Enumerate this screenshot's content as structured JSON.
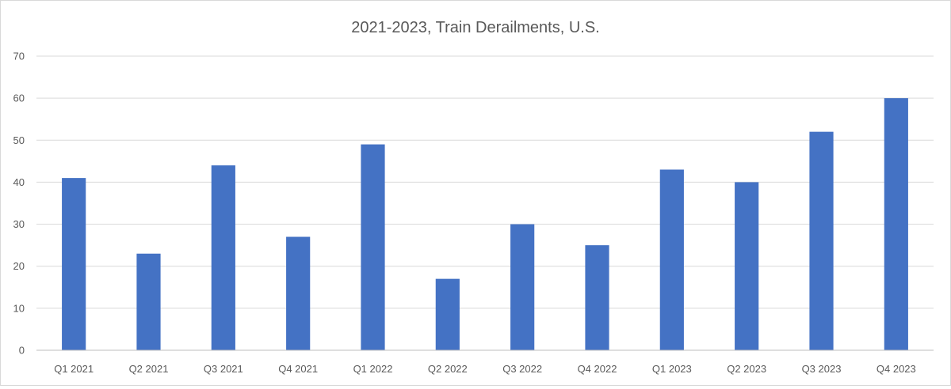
{
  "chart_data": {
    "type": "bar",
    "title": "2021-2023, Train Derailments, U.S.",
    "xlabel": "",
    "ylabel": "",
    "categories": [
      "Q1 2021",
      "Q2 2021",
      "Q3 2021",
      "Q4 2021",
      "Q1 2022",
      "Q2 2022",
      "Q3 2022",
      "Q4 2022",
      "Q1 2023",
      "Q2 2023",
      "Q3 2023",
      "Q4 2023"
    ],
    "values": [
      41,
      23,
      44,
      27,
      49,
      17,
      30,
      25,
      43,
      40,
      52,
      60
    ],
    "ylim": [
      0,
      70
    ],
    "yticks": [
      "0",
      "10",
      "20",
      "30",
      "40",
      "50",
      "60",
      "70"
    ],
    "grid": true,
    "legend": "none",
    "colors": {
      "bar": "#4472C4",
      "grid": "#d9d9d9",
      "axis": "#bfbfbf"
    }
  }
}
